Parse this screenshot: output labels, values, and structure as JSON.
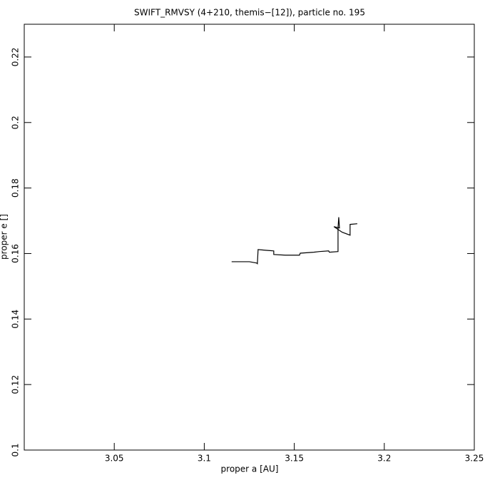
{
  "chart_data": {
    "type": "line",
    "title": "SWIFT_RMVSY (4+210, themis−[12]), particle no. 195",
    "x_label": "proper a [AU]",
    "y_label": "proper e []",
    "x": [
      3.1152,
      3.1251,
      3.1291,
      3.1295,
      3.1299,
      3.134,
      3.1386,
      3.1386,
      3.145,
      3.1529,
      3.1533,
      3.1608,
      3.164,
      3.1691,
      3.1695,
      3.1743,
      3.1743,
      3.1747,
      3.1751,
      3.172,
      3.1766,
      3.181,
      3.181,
      3.185
    ],
    "values": [
      0.1575,
      0.1575,
      0.1571,
      0.1569,
      0.1612,
      0.161,
      0.1608,
      0.1597,
      0.1595,
      0.1595,
      0.1601,
      0.1604,
      0.1606,
      0.1608,
      0.1604,
      0.1606,
      0.1678,
      0.1711,
      0.1678,
      0.1682,
      0.1665,
      0.1656,
      0.1689,
      0.1691
    ],
    "color": "#000000",
    "xlim": [
      3.0,
      3.25
    ],
    "xticks": [
      3.05,
      3.1,
      3.15,
      3.2,
      3.25
    ],
    "ylim": [
      0.1,
      0.23
    ],
    "yticks": [
      0.1,
      0.12,
      0.14,
      0.16,
      0.18,
      0.2,
      0.22
    ],
    "grid": false
  }
}
